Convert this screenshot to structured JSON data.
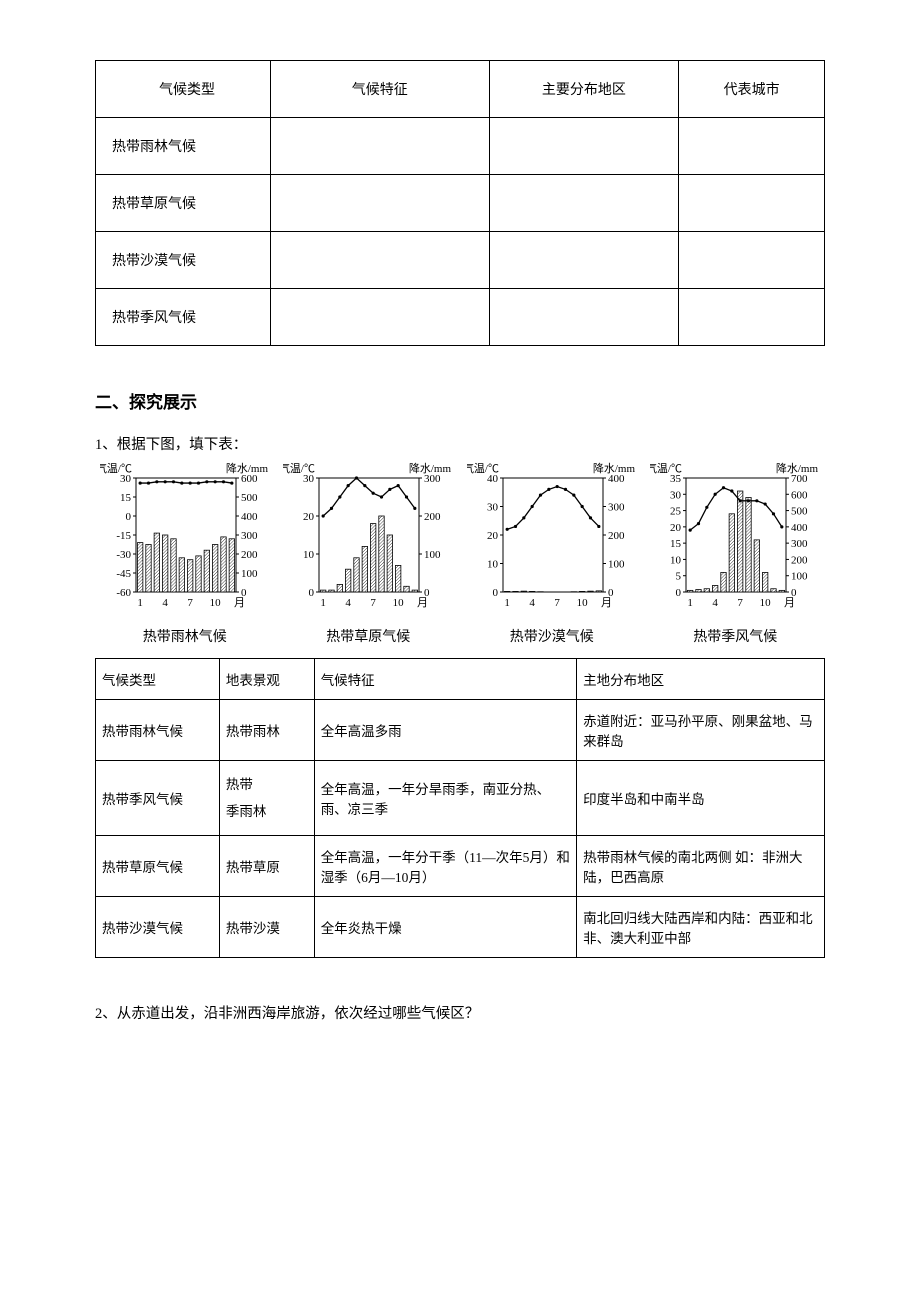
{
  "table1": {
    "headers": [
      "气候类型",
      "气候特征",
      "主要分布地区",
      "代表城市"
    ],
    "col_widths": [
      "24%",
      "30%",
      "26%",
      "20%"
    ],
    "rows": [
      [
        "热带雨林气候",
        "",
        "",
        ""
      ],
      [
        "热带草原气候",
        "",
        "",
        ""
      ],
      [
        "热带沙漠气候",
        "",
        "",
        ""
      ],
      [
        "热带季风气候",
        "",
        "",
        ""
      ]
    ]
  },
  "section2_title": "二、探究展示",
  "q1_text": "1、根据下图，填下表：",
  "charts": {
    "temp_label": "气温/℃",
    "precip_label": "降水/mm",
    "month_axis": "月",
    "month_ticks": [
      "1",
      "4",
      "7",
      "10"
    ],
    "background": "#ffffff",
    "axis_color": "#000000",
    "bar_fill": "#ffffff",
    "bar_hatch": "#000000",
    "line_color": "#000000",
    "items": [
      {
        "caption": "热带雨林气候",
        "temp_ticks": [
          -60,
          -45,
          -30,
          -15,
          0,
          15,
          30
        ],
        "precip_ticks": [
          0,
          100,
          200,
          300,
          400,
          500,
          600
        ],
        "temp_values": [
          26,
          26,
          27,
          27,
          27,
          26,
          26,
          26,
          27,
          27,
          27,
          26
        ],
        "precip_values": [
          260,
          250,
          310,
          300,
          280,
          180,
          170,
          190,
          220,
          250,
          290,
          280
        ]
      },
      {
        "caption": "热带草原气候",
        "temp_ticks": [
          0,
          10,
          20,
          30
        ],
        "precip_ticks": [
          0,
          100,
          200,
          300
        ],
        "temp_values": [
          20,
          22,
          25,
          28,
          30,
          28,
          26,
          25,
          27,
          28,
          25,
          22
        ],
        "precip_values": [
          5,
          5,
          20,
          60,
          90,
          120,
          180,
          200,
          150,
          70,
          15,
          5
        ]
      },
      {
        "caption": "热带沙漠气候",
        "temp_ticks": [
          0,
          10,
          20,
          30,
          40
        ],
        "precip_ticks": [
          0,
          100,
          200,
          300,
          400
        ],
        "temp_values": [
          22,
          23,
          26,
          30,
          34,
          36,
          37,
          36,
          34,
          30,
          26,
          23
        ],
        "precip_values": [
          2,
          2,
          3,
          2,
          1,
          0,
          0,
          0,
          1,
          2,
          3,
          4
        ]
      },
      {
        "caption": "热带季风气候",
        "temp_ticks": [
          0,
          5,
          10,
          15,
          20,
          25,
          30,
          35
        ],
        "precip_ticks": [
          0,
          100,
          200,
          300,
          400,
          500,
          600,
          700
        ],
        "temp_values": [
          19,
          21,
          26,
          30,
          32,
          31,
          28,
          28,
          28,
          27,
          24,
          20
        ],
        "precip_values": [
          10,
          15,
          20,
          40,
          120,
          480,
          620,
          580,
          320,
          120,
          20,
          10
        ]
      }
    ]
  },
  "table2": {
    "headers": [
      "气候类型",
      "地表景观",
      "气候特征",
      "主地分布地区"
    ],
    "col_widths": [
      "17%",
      "13%",
      "36%",
      "34%"
    ],
    "rows": [
      [
        "热带雨林气候",
        "热带雨林",
        "全年高温多雨",
        "赤道附近：亚马孙平原、刚果盆地、马来群岛"
      ],
      [
        "热带季风气候",
        "热带\n季雨林",
        "全年高温，一年分旱雨季，南亚分热、雨、凉三季",
        "印度半岛和中南半岛"
      ],
      [
        "热带草原气候",
        "热带草原",
        "全年高温，一年分干季（11—次年5月）和湿季（6月—10月）",
        "热带雨林气候的南北两侧 如：非洲大陆，巴西高原"
      ],
      [
        "热带沙漠气候",
        "热带沙漠",
        "全年炎热干燥",
        "南北回归线大陆西岸和内陆：西亚和北非、澳大利亚中部"
      ]
    ]
  },
  "q2_text": "2、从赤道出发，沿非洲西海岸旅游，依次经过哪些气候区？"
}
